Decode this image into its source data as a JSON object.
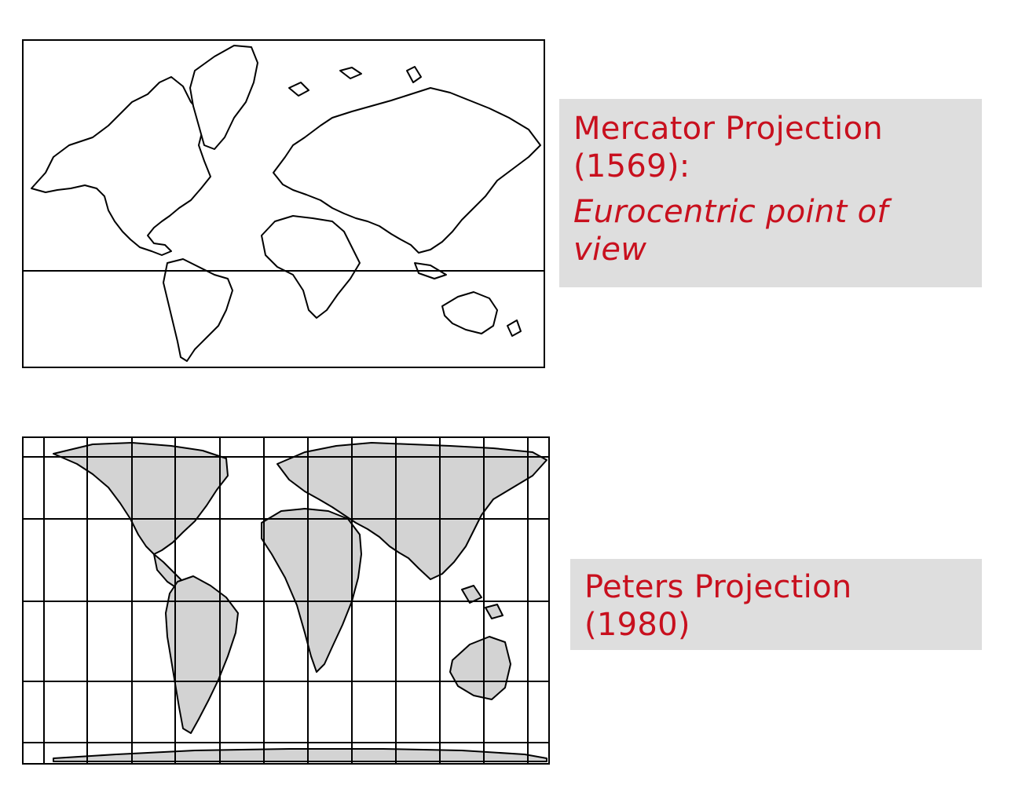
{
  "colors": {
    "accent": "#c8101e",
    "label_background": "#dedede",
    "land_mercator": "#ffffff",
    "land_peters": "#d3d3d3",
    "outline": "#000000"
  },
  "mercator": {
    "title_line1": "Mercator Projection",
    "title_line2": "(1569):",
    "note_line1": "Eurocentric point of",
    "note_line2": "view",
    "style": "white land outline, equator line"
  },
  "peters": {
    "title_line1": "Peters Projection",
    "title_line2": "(1980)",
    "style": "gray filled land, graticule grid"
  }
}
